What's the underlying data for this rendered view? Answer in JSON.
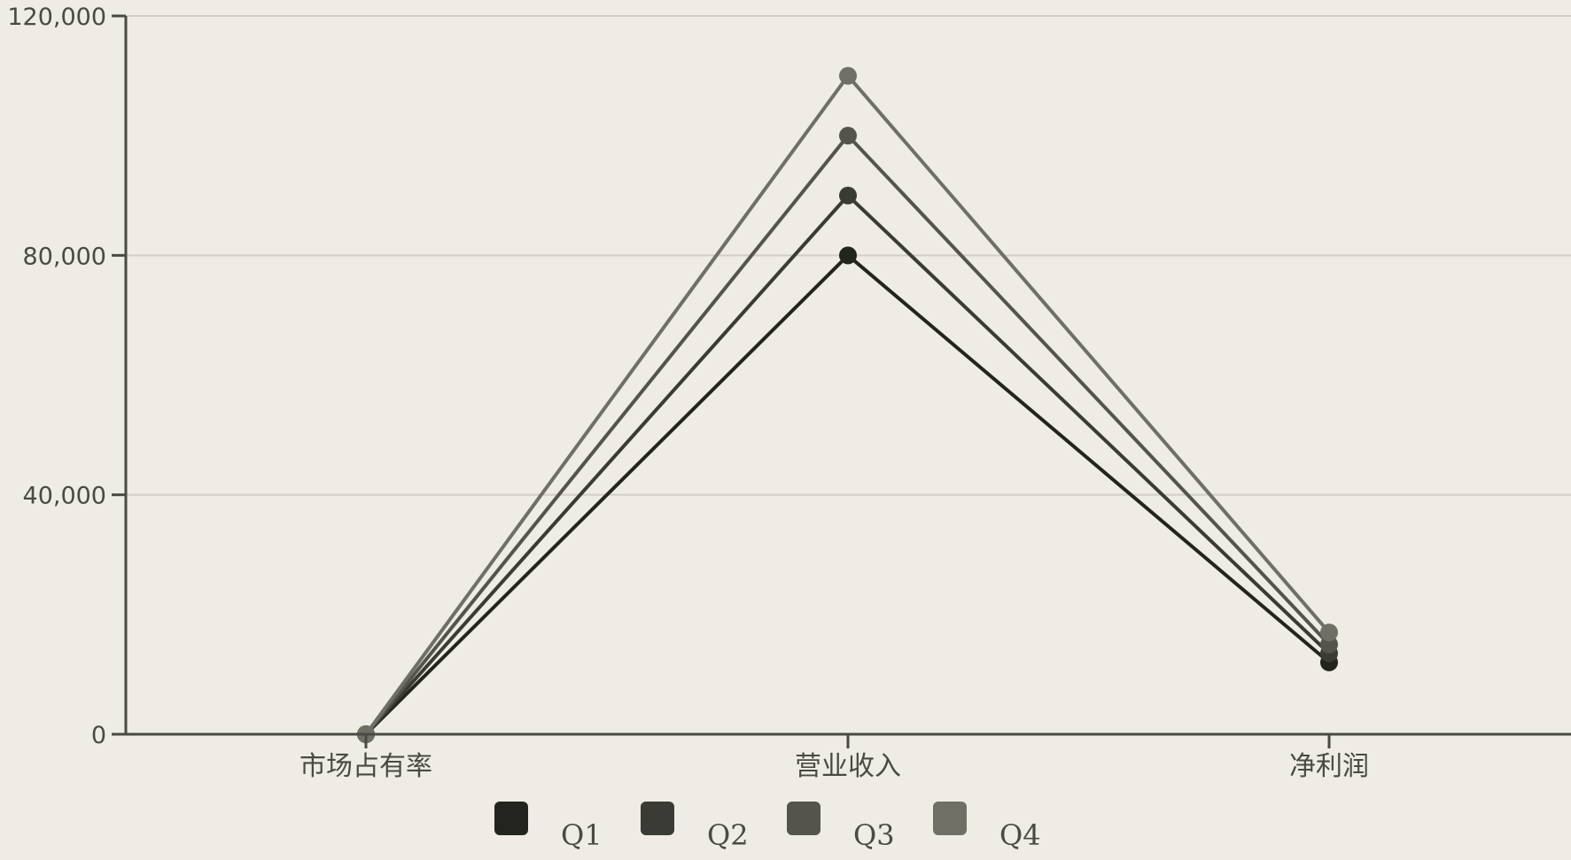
{
  "chart_data": {
    "type": "line",
    "categories": [
      "市场占有率",
      "营业收入",
      "净利润"
    ],
    "series": [
      {
        "name": "Q1",
        "values": [
          0,
          80000,
          12000
        ],
        "color": "#24241f"
      },
      {
        "name": "Q2",
        "values": [
          0,
          90000,
          13500
        ],
        "color": "#3b3b35"
      },
      {
        "name": "Q3",
        "values": [
          0,
          100000,
          15000
        ],
        "color": "#54544d"
      },
      {
        "name": "Q4",
        "values": [
          0,
          110000,
          17000
        ],
        "color": "#6f6f66"
      }
    ],
    "ylim": [
      0,
      120000
    ],
    "yticks": [
      0,
      40000,
      80000,
      120000
    ],
    "ytick_labels": [
      "0",
      "40,000",
      "80,000",
      "120,000"
    ],
    "title": "",
    "xlabel": "",
    "ylabel": "",
    "grid": "horizontal",
    "legend_position": "bottom",
    "colors": {
      "background": "#efebe5",
      "axis": "#4a4a45",
      "grid": "#d2cec8"
    }
  }
}
